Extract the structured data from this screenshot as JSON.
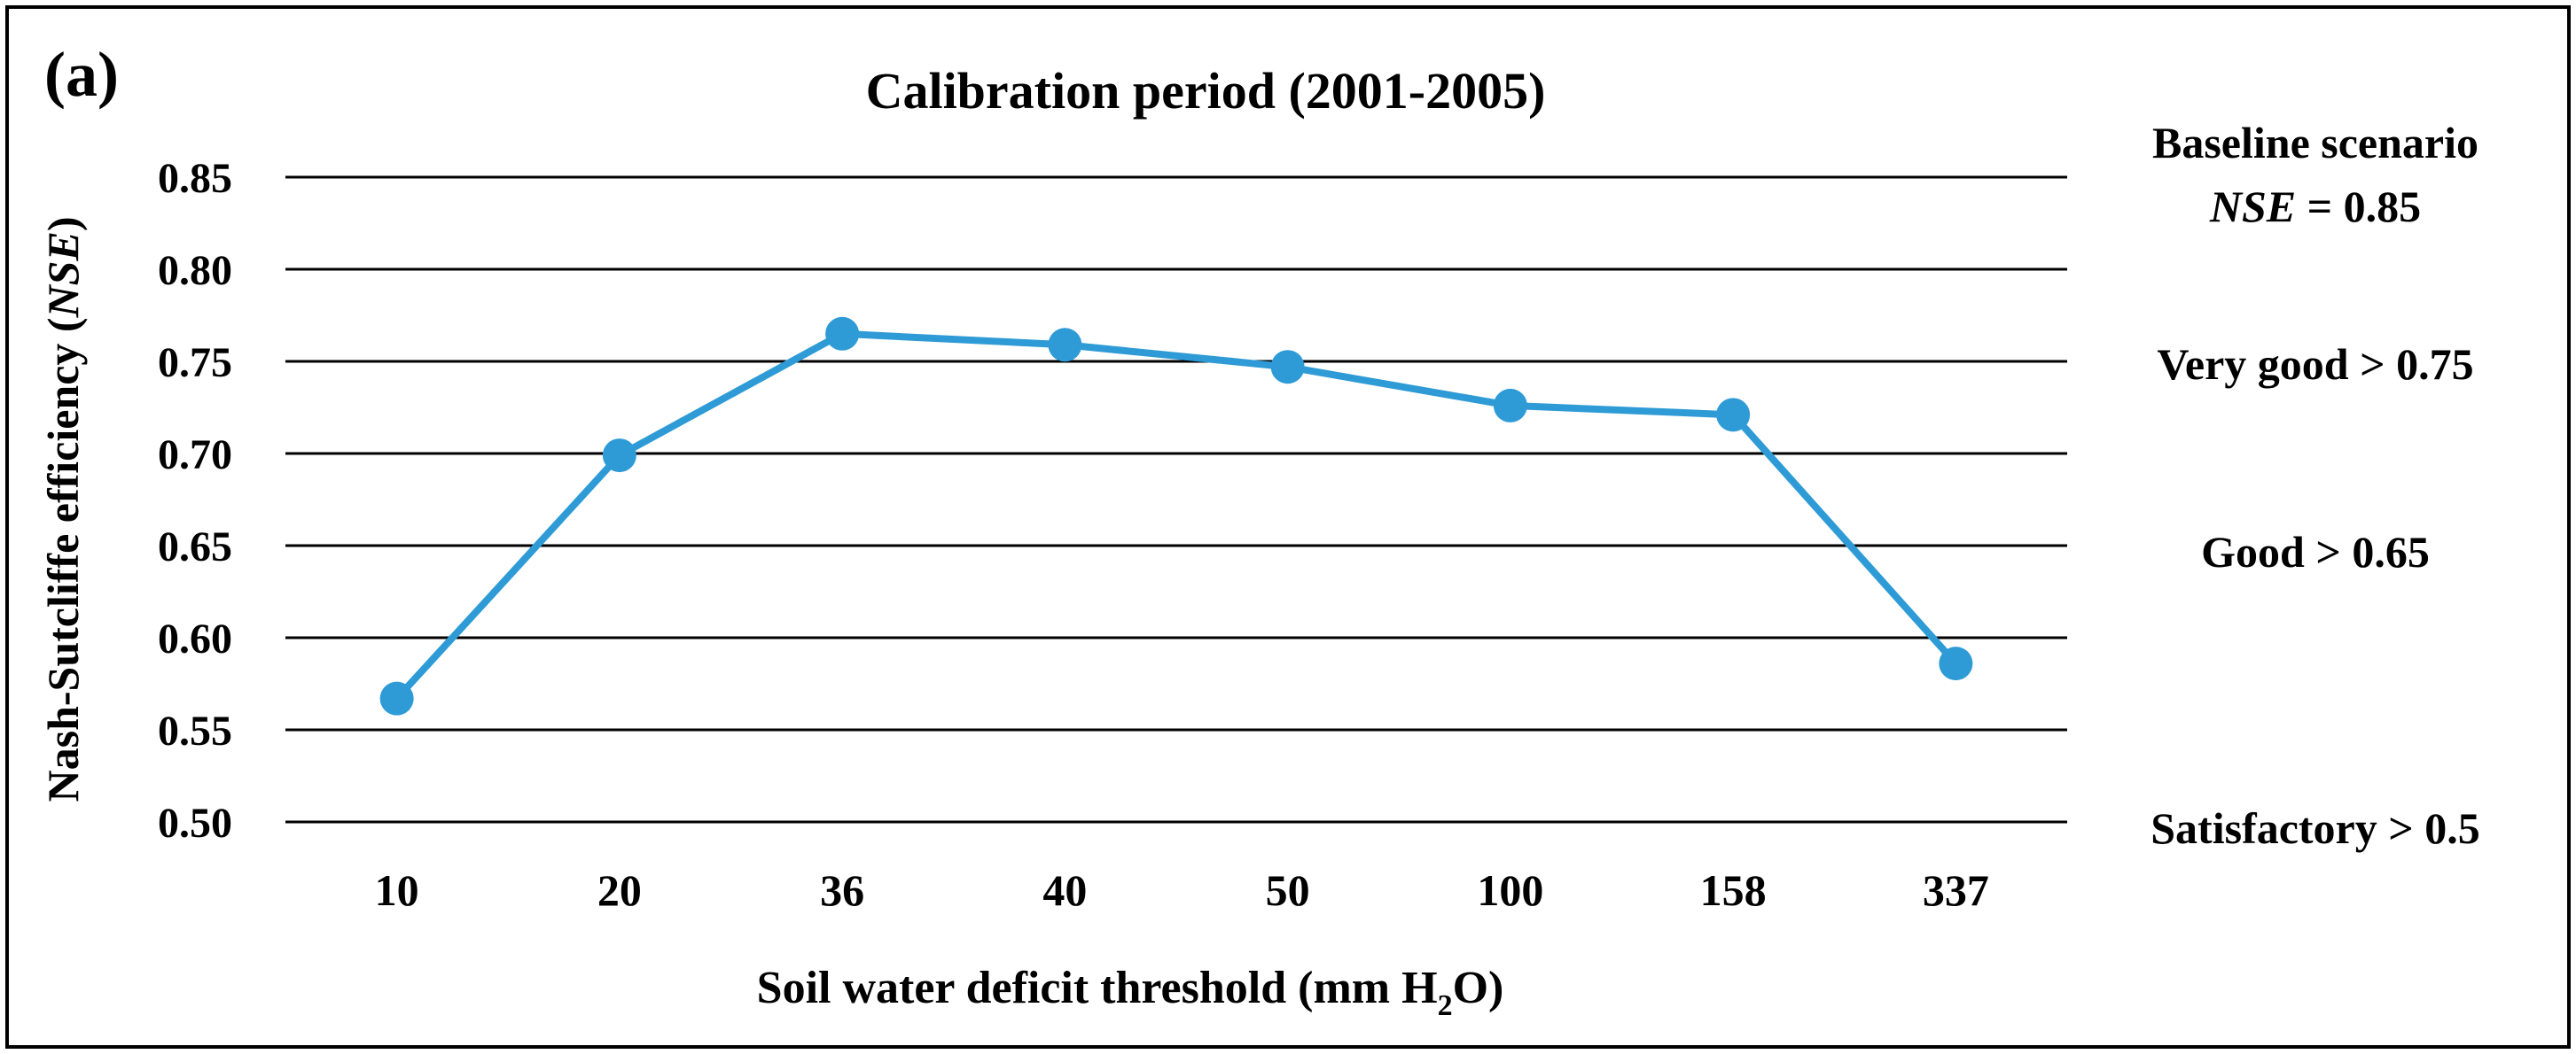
{
  "panel_label": "(a)",
  "chart_data": {
    "type": "line",
    "title": "Calibration period (2001-2005)",
    "xlabel": {
      "prefix": "Soil water deficit threshold (mm H",
      "subscript": "2",
      "suffix": "O)"
    },
    "ylabel": {
      "prefix": "Nash-Sutcliffe efficiency (",
      "italic": "NSE",
      "suffix": ")"
    },
    "categories": [
      "10",
      "20",
      "36",
      "40",
      "50",
      "100",
      "158",
      "337"
    ],
    "series": [
      {
        "name": "NSE",
        "color": "#2e9bd6",
        "values": [
          0.567,
          0.699,
          0.765,
          0.759,
          0.747,
          0.726,
          0.721,
          0.586
        ]
      }
    ],
    "ylim": [
      0.5,
      0.85
    ],
    "yticks": [
      "0.50",
      "0.55",
      "0.60",
      "0.65",
      "0.70",
      "0.75",
      "0.80",
      "0.85"
    ],
    "grid": true,
    "annotations": {
      "baseline_title": "Baseline scenario",
      "baseline_nse_label": "NSE",
      "baseline_nse_value": " = 0.85",
      "very_good": "Very good > 0.75",
      "good": "Good > 0.65",
      "satisfactory": "Satisfactory > 0.5"
    }
  }
}
